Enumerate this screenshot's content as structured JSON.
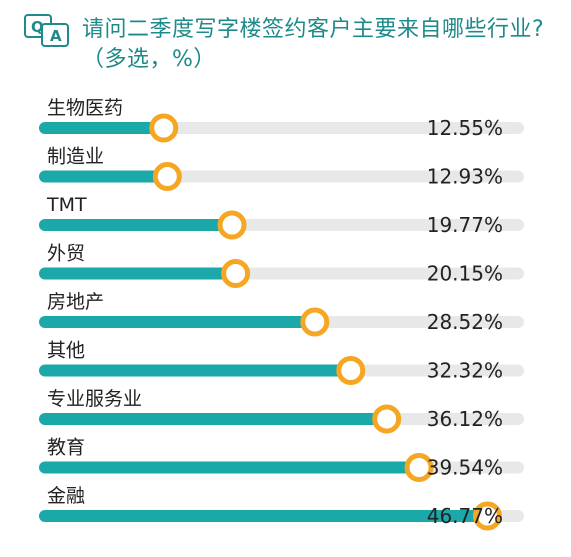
{
  "header": {
    "title_line1": "请问二季度写字楼签约客户主要来自哪些行业?",
    "title_line2": "（多选，%）",
    "icon": "qa-icon"
  },
  "colors": {
    "accent": "#1aa8a8",
    "track": "#e8e8e8",
    "marker": "#f5a623",
    "title": "#1e8a8a"
  },
  "chart_data": {
    "type": "bar",
    "orientation": "horizontal",
    "title": "请问二季度写字楼签约客户主要来自哪些行业?（多选，%）",
    "categories": [
      "生物医药",
      "制造业",
      "TMT",
      "外贸",
      "房地产",
      "其他",
      "专业服务业",
      "教育",
      "金融"
    ],
    "values": [
      12.55,
      12.93,
      19.77,
      20.15,
      28.52,
      32.32,
      36.12,
      39.54,
      46.77
    ],
    "value_labels": [
      "12.55%",
      "12.93%",
      "19.77%",
      "20.15%",
      "28.52%",
      "32.32%",
      "36.12%",
      "39.54%",
      "46.77%"
    ],
    "xlim": [
      0,
      50
    ],
    "unit": "%",
    "grid": false,
    "legend": "none"
  }
}
